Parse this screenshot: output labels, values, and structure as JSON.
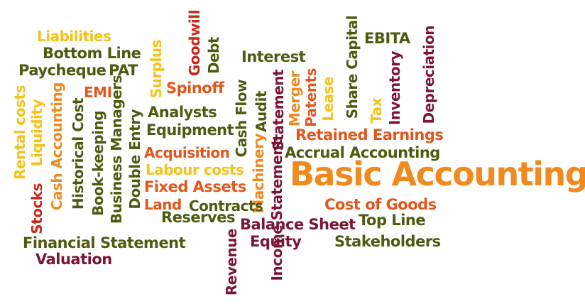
{
  "colors": {
    "dark_red": "#7b1436",
    "olive": "#4e5a10",
    "orange": "#f08a1e",
    "red_orange": "#e2561c",
    "yellow": "#f3c21a",
    "crimson": "#c9281c"
  },
  "words": [
    {
      "text": "Liabilities",
      "color": "#f3c21a"
    },
    {
      "text": "Bottom Line",
      "color": "#4e5a10"
    },
    {
      "text": "Paycheque",
      "color": "#4e5a10"
    },
    {
      "text": "PAT",
      "color": "#4e5a10"
    },
    {
      "text": "EMI",
      "color": "#e2561c"
    },
    {
      "text": "Goodwill",
      "color": "#c9281c"
    },
    {
      "text": "Debt",
      "color": "#4e5a10"
    },
    {
      "text": "Surplus",
      "color": "#f3c21a"
    },
    {
      "text": "Spinoff",
      "color": "#e2561c"
    },
    {
      "text": "Interest",
      "color": "#4e5a10"
    },
    {
      "text": "Share Capital",
      "color": "#4e5a10"
    },
    {
      "text": "EBITA",
      "color": "#4e5a10"
    },
    {
      "text": "Depreciation",
      "color": "#7b1436"
    },
    {
      "text": "Inventory",
      "color": "#7b1436"
    },
    {
      "text": "Tax",
      "color": "#f3c21a"
    },
    {
      "text": "Lease",
      "color": "#f3c21a"
    },
    {
      "text": "Patents",
      "color": "#e2561c"
    },
    {
      "text": "Merger",
      "color": "#f08a1e"
    },
    {
      "text": "Statement",
      "color": "#7b1436"
    },
    {
      "text": "Audit",
      "color": "#4e5a10"
    },
    {
      "text": "Cash Flow",
      "color": "#4e5a10"
    },
    {
      "text": "Rental costs",
      "color": "#f3c21a"
    },
    {
      "text": "Liquidity",
      "color": "#f3c21a"
    },
    {
      "text": "Cash Accounting",
      "color": "#f08a1e"
    },
    {
      "text": "Historical Cost",
      "color": "#4e5a10"
    },
    {
      "text": "Book-keeping",
      "color": "#4e5a10"
    },
    {
      "text": "Business Managers",
      "color": "#4e5a10"
    },
    {
      "text": "Double Entry",
      "color": "#4e5a10"
    },
    {
      "text": "Analysts",
      "color": "#4e5a10"
    },
    {
      "text": "Equipment",
      "color": "#4e5a10"
    },
    {
      "text": "Retained Earnings",
      "color": "#e2561c"
    },
    {
      "text": "Acquisition",
      "color": "#e2561c"
    },
    {
      "text": "Accrual Accounting",
      "color": "#4e5a10"
    },
    {
      "text": "Labour costs",
      "color": "#f3c21a"
    },
    {
      "text": "Machinery",
      "color": "#f08a1e"
    },
    {
      "text": "Income Statement",
      "color": "#7b1436"
    },
    {
      "text": "Basic Accounting",
      "color": "#f08a1e"
    },
    {
      "text": "Fixed Assets",
      "color": "#e2561c"
    },
    {
      "text": "Stocks",
      "color": "#c9281c"
    },
    {
      "text": "Land",
      "color": "#e2561c"
    },
    {
      "text": "Contracts",
      "color": "#4e5a10"
    },
    {
      "text": "Cost of Goods",
      "color": "#e2561c"
    },
    {
      "text": "Reserves",
      "color": "#4e5a10"
    },
    {
      "text": "Top Line",
      "color": "#4e5a10"
    },
    {
      "text": "Balance Sheet",
      "color": "#7b1436"
    },
    {
      "text": "Financial Statement",
      "color": "#4e5a10"
    },
    {
      "text": "Equity",
      "color": "#7b1436"
    },
    {
      "text": "Stakeholders",
      "color": "#4e5a10"
    },
    {
      "text": "Valuation",
      "color": "#7b1436"
    },
    {
      "text": "Revenue",
      "color": "#7b1436"
    }
  ]
}
